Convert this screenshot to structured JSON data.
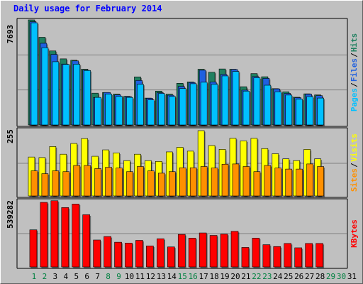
{
  "title": "Daily usage for February 2014",
  "colors": {
    "pages": "#00c0ff",
    "files": "#2060e0",
    "hits": "#208060",
    "visits": "#ffff00",
    "sites": "#ff9000",
    "kbytes": "#ff0000",
    "weekend": "#008040",
    "weekday": "#000000",
    "grid": "#808080"
  },
  "chart_data": [
    {
      "type": "bar",
      "panel": "hits-files-pages",
      "ymax_label": "7693",
      "ymax": 7693,
      "legend": [
        {
          "text": "Pages",
          "color": "#00c0ff"
        },
        {
          "text": "/",
          "color": "#000000"
        },
        {
          "text": "Files",
          "color": "#2060e0"
        },
        {
          "text": "/",
          "color": "#000000"
        },
        {
          "text": "Hits",
          "color": "#208060"
        }
      ],
      "series": [
        {
          "name": "Hits",
          "values": [
            7693,
            6420,
            5420,
            4840,
            4740,
            4080,
            2330,
            2380,
            2260,
            2100,
            3520,
            1970,
            2480,
            2260,
            3050,
            3150,
            4080,
            3860,
            4100,
            4080,
            2800,
            3760,
            3530,
            2660,
            2430,
            2030,
            2280,
            2200
          ]
        },
        {
          "name": "Files",
          "values": [
            7560,
            5980,
            5170,
            4460,
            4690,
            4020,
            2000,
            2380,
            2200,
            2070,
            3260,
            1950,
            2360,
            2180,
            2820,
            3110,
            4010,
            3150,
            3700,
            4060,
            2550,
            3540,
            3410,
            2640,
            2310,
            2000,
            2250,
            2150
          ]
        },
        {
          "name": "Pages",
          "values": [
            7480,
            5660,
            4630,
            4440,
            4450,
            3990,
            2020,
            2260,
            2100,
            2020,
            2980,
            1840,
            2300,
            2090,
            2670,
            3020,
            3130,
            2980,
            3590,
            3920,
            2480,
            3460,
            2910,
            2430,
            2190,
            1890,
            2080,
            1970
          ]
        }
      ]
    },
    {
      "type": "bar",
      "panel": "visits-sites",
      "ymax_label": "255",
      "ymax": 255,
      "legend": [
        {
          "text": "Sites",
          "color": "#ff9000"
        },
        {
          "text": "/",
          "color": "#000000"
        },
        {
          "text": "Visits",
          "color": "#ffff00"
        }
      ],
      "series": [
        {
          "name": "Visits",
          "values": [
            152,
            150,
            193,
            163,
            205,
            224,
            155,
            180,
            168,
            138,
            163,
            138,
            135,
            172,
            190,
            175,
            255,
            197,
            182,
            225,
            215,
            225,
            185,
            165,
            145,
            138,
            182,
            145
          ]
        },
        {
          "name": "Sites",
          "values": [
            98,
            87,
            98,
            95,
            119,
            119,
            107,
            112,
            109,
            95,
            115,
            98,
            89,
            95,
            110,
            110,
            115,
            109,
            124,
            125,
            115,
            95,
            119,
            109,
            105,
            105,
            125,
            115
          ]
        }
      ]
    },
    {
      "type": "bar",
      "panel": "kbytes",
      "ymax_label": "539282",
      "ymax": 539282,
      "legend": [
        {
          "text": "KBytes",
          "color": "#ff0000"
        }
      ],
      "series": [
        {
          "name": "KBytes",
          "values": [
            300000,
            522000,
            535000,
            480000,
            508000,
            422000,
            218000,
            246000,
            200000,
            193000,
            215000,
            170000,
            228000,
            162000,
            263000,
            233000,
            275000,
            255000,
            265000,
            288000,
            158000,
            233000,
            180000,
            165000,
            190000,
            155000,
            190000,
            190000
          ]
        }
      ]
    }
  ],
  "x_axis": {
    "days": [
      "1",
      "2",
      "3",
      "4",
      "5",
      "6",
      "7",
      "8",
      "9",
      "10",
      "11",
      "12",
      "13",
      "14",
      "15",
      "16",
      "17",
      "18",
      "19",
      "20",
      "21",
      "22",
      "23",
      "24",
      "25",
      "26",
      "27",
      "28",
      "29",
      "30",
      "31"
    ],
    "weekend_days": [
      "1",
      "2",
      "8",
      "9",
      "15",
      "16",
      "22",
      "23",
      "29",
      "30"
    ]
  }
}
